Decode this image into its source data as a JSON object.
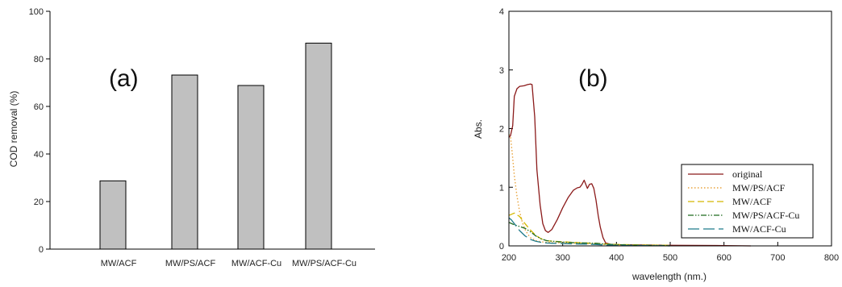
{
  "chart_data": [
    {
      "type": "bar",
      "panel_label": "(a)",
      "categories": [
        "MW/ACF",
        "MW/PS/ACF",
        "MW/ACF-Cu",
        "MW/PS/ACF-Cu"
      ],
      "values": [
        28.7,
        73.2,
        68.8,
        86.6
      ],
      "xlabel": "",
      "ylabel": "COD removal (%)",
      "ylim": [
        0,
        100
      ],
      "yticks": [
        "0",
        "20",
        "40",
        "60",
        "80",
        "100"
      ],
      "bar_color": "#c0c0c0",
      "grid": false
    },
    {
      "type": "line",
      "panel_label": "(b)",
      "xlabel": "wavelength (nm.)",
      "ylabel": "Abs.",
      "xlim": [
        200,
        800
      ],
      "ylim": [
        0,
        4
      ],
      "xticks": [
        "200",
        "300",
        "400",
        "500",
        "600",
        "700",
        "800"
      ],
      "yticks": [
        "0",
        "1",
        "2",
        "3",
        "4"
      ],
      "grid": false,
      "legend_position": "bottom-right",
      "series": [
        {
          "name": "original",
          "color": "#8b1a1a",
          "style": "solid",
          "x": [
            200,
            203,
            207,
            210,
            215,
            220,
            228,
            235,
            240,
            243,
            248,
            252,
            258,
            263,
            268,
            273,
            280,
            290,
            300,
            310,
            320,
            327,
            332,
            336,
            340,
            343,
            346,
            350,
            354,
            358,
            362,
            366,
            370,
            375,
            380,
            390,
            400,
            450,
            500,
            600,
            650
          ],
          "y": [
            1.85,
            1.88,
            2.05,
            2.55,
            2.68,
            2.72,
            2.73,
            2.75,
            2.76,
            2.75,
            2.2,
            1.3,
            0.7,
            0.38,
            0.26,
            0.23,
            0.28,
            0.45,
            0.65,
            0.82,
            0.95,
            0.99,
            1.0,
            1.05,
            1.12,
            1.05,
            0.98,
            1.05,
            1.06,
            0.98,
            0.78,
            0.52,
            0.32,
            0.14,
            0.05,
            0.025,
            0.02,
            0.015,
            0.01,
            0.005,
            0.0
          ]
        },
        {
          "name": "MW/PS/ACF",
          "color": "#e8a33c",
          "style": "dotted",
          "x": [
            200,
            203,
            206,
            210,
            215,
            220,
            225,
            230,
            235,
            240,
            250,
            260,
            270,
            280,
            300,
            320,
            340,
            360,
            380,
            400
          ],
          "y": [
            1.9,
            1.85,
            1.6,
            1.2,
            0.85,
            0.58,
            0.4,
            0.28,
            0.2,
            0.14,
            0.09,
            0.07,
            0.06,
            0.055,
            0.05,
            0.045,
            0.04,
            0.03,
            0.02,
            0.01
          ]
        },
        {
          "name": "MW/ACF",
          "color": "#d4b800",
          "style": "dashed",
          "x": [
            200,
            210,
            220,
            230,
            240,
            250,
            260,
            270,
            280,
            300,
            320,
            340,
            360,
            380,
            400,
            450,
            500
          ],
          "y": [
            0.52,
            0.56,
            0.5,
            0.38,
            0.27,
            0.18,
            0.12,
            0.09,
            0.08,
            0.07,
            0.06,
            0.05,
            0.045,
            0.035,
            0.025,
            0.015,
            0.01
          ]
        },
        {
          "name": "MW/PS/ACF-Cu",
          "color": "#1e6b1e",
          "style": "dashdotdot",
          "x": [
            200,
            210,
            220,
            230,
            240,
            250,
            260,
            270,
            280,
            300,
            320,
            340,
            360,
            380,
            400,
            450,
            500
          ],
          "y": [
            0.4,
            0.36,
            0.33,
            0.3,
            0.24,
            0.17,
            0.12,
            0.09,
            0.08,
            0.065,
            0.055,
            0.05,
            0.045,
            0.03,
            0.02,
            0.01,
            0.005
          ]
        },
        {
          "name": "MW/ACF-Cu",
          "color": "#1f7a8a",
          "style": "longdash",
          "x": [
            200,
            205,
            210,
            220,
            230,
            240,
            250,
            260,
            270,
            280,
            300,
            320,
            340,
            360,
            380,
            400,
            450,
            500
          ],
          "y": [
            0.48,
            0.44,
            0.38,
            0.26,
            0.17,
            0.11,
            0.08,
            0.06,
            0.05,
            0.045,
            0.04,
            0.035,
            0.03,
            0.025,
            0.015,
            0.01,
            0.005,
            0.0
          ]
        }
      ]
    }
  ]
}
